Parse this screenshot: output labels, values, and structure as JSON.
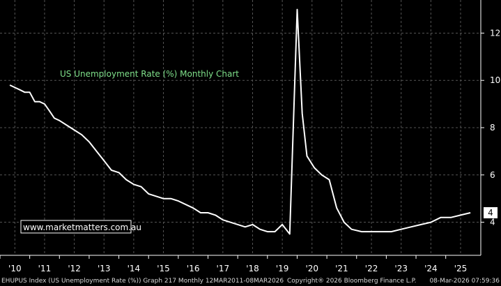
{
  "chart_data": {
    "type": "line",
    "title": "US Unemployment Rate (%) Monthly Chart",
    "watermark": "www.marketmatters.com.au",
    "x": [
      2010.33,
      2010.5,
      2010.67,
      2010.83,
      2011.0,
      2011.17,
      2011.33,
      2011.5,
      2011.67,
      2011.83,
      2012.0,
      2012.25,
      2012.5,
      2012.75,
      2013.0,
      2013.25,
      2013.5,
      2013.75,
      2014.0,
      2014.25,
      2014.5,
      2014.75,
      2015.0,
      2015.25,
      2015.5,
      2015.75,
      2016.0,
      2016.5,
      2016.75,
      2017.0,
      2017.25,
      2017.5,
      2017.75,
      2018.0,
      2018.25,
      2018.5,
      2018.75,
      2019.0,
      2019.25,
      2019.5,
      2019.75,
      2020.0,
      2020.17,
      2020.33,
      2020.58,
      2020.83,
      2021.08,
      2021.33,
      2021.58,
      2021.83,
      2022.17,
      2022.5,
      2022.83,
      2023.17,
      2023.5,
      2023.83,
      2024.17,
      2024.5,
      2024.83,
      2025.17,
      2025.5,
      2025.83
    ],
    "y": [
      9.8,
      9.7,
      9.6,
      9.5,
      9.5,
      9.1,
      9.1,
      9.0,
      8.7,
      8.4,
      8.3,
      8.1,
      7.9,
      7.7,
      7.4,
      7.0,
      6.6,
      6.2,
      6.1,
      5.8,
      5.6,
      5.5,
      5.2,
      5.1,
      5.0,
      5.0,
      4.9,
      4.6,
      4.4,
      4.4,
      4.3,
      4.1,
      4.0,
      3.9,
      3.8,
      3.9,
      3.7,
      3.6,
      3.6,
      3.9,
      3.5,
      13.0,
      8.6,
      6.8,
      6.3,
      6.0,
      5.8,
      4.6,
      4.0,
      3.7,
      3.6,
      3.6,
      3.6,
      3.6,
      3.7,
      3.8,
      3.9,
      4.0,
      4.2,
      4.2,
      4.3,
      4.4
    ],
    "yticks": [
      4,
      6,
      8,
      10,
      12
    ],
    "ytick_labels": [
      "4",
      "6",
      "8",
      "10",
      "12"
    ],
    "xticks": [
      2010,
      2011,
      2012,
      2013,
      2014,
      2015,
      2016,
      2017,
      2018,
      2019,
      2020,
      2021,
      2022,
      2023,
      2024,
      2025
    ],
    "xtick_labels": [
      "'10",
      "'11",
      "'12",
      "'13",
      "'14",
      "'15",
      "'16",
      "'17",
      "'18",
      "'19",
      "'20",
      "'21",
      "'22",
      "'23",
      "'24",
      "'25"
    ],
    "ylim": [
      2.6,
      13.4
    ],
    "xlim": [
      2010.0,
      2026.18
    ],
    "last_value_label": "4",
    "grid": true,
    "line_color": "#ffffff",
    "grid_color": "#555555",
    "title_color": "#7fe08a"
  },
  "footer": {
    "left": "EHUPUS Index (US Unemployment Rate (%)) Graph 217 Monthly 12MAR2011-08MAR2026",
    "center": "Copyright® 2026 Bloomberg Finance L.P.",
    "right": "08-Mar-2026 07:59:36"
  }
}
